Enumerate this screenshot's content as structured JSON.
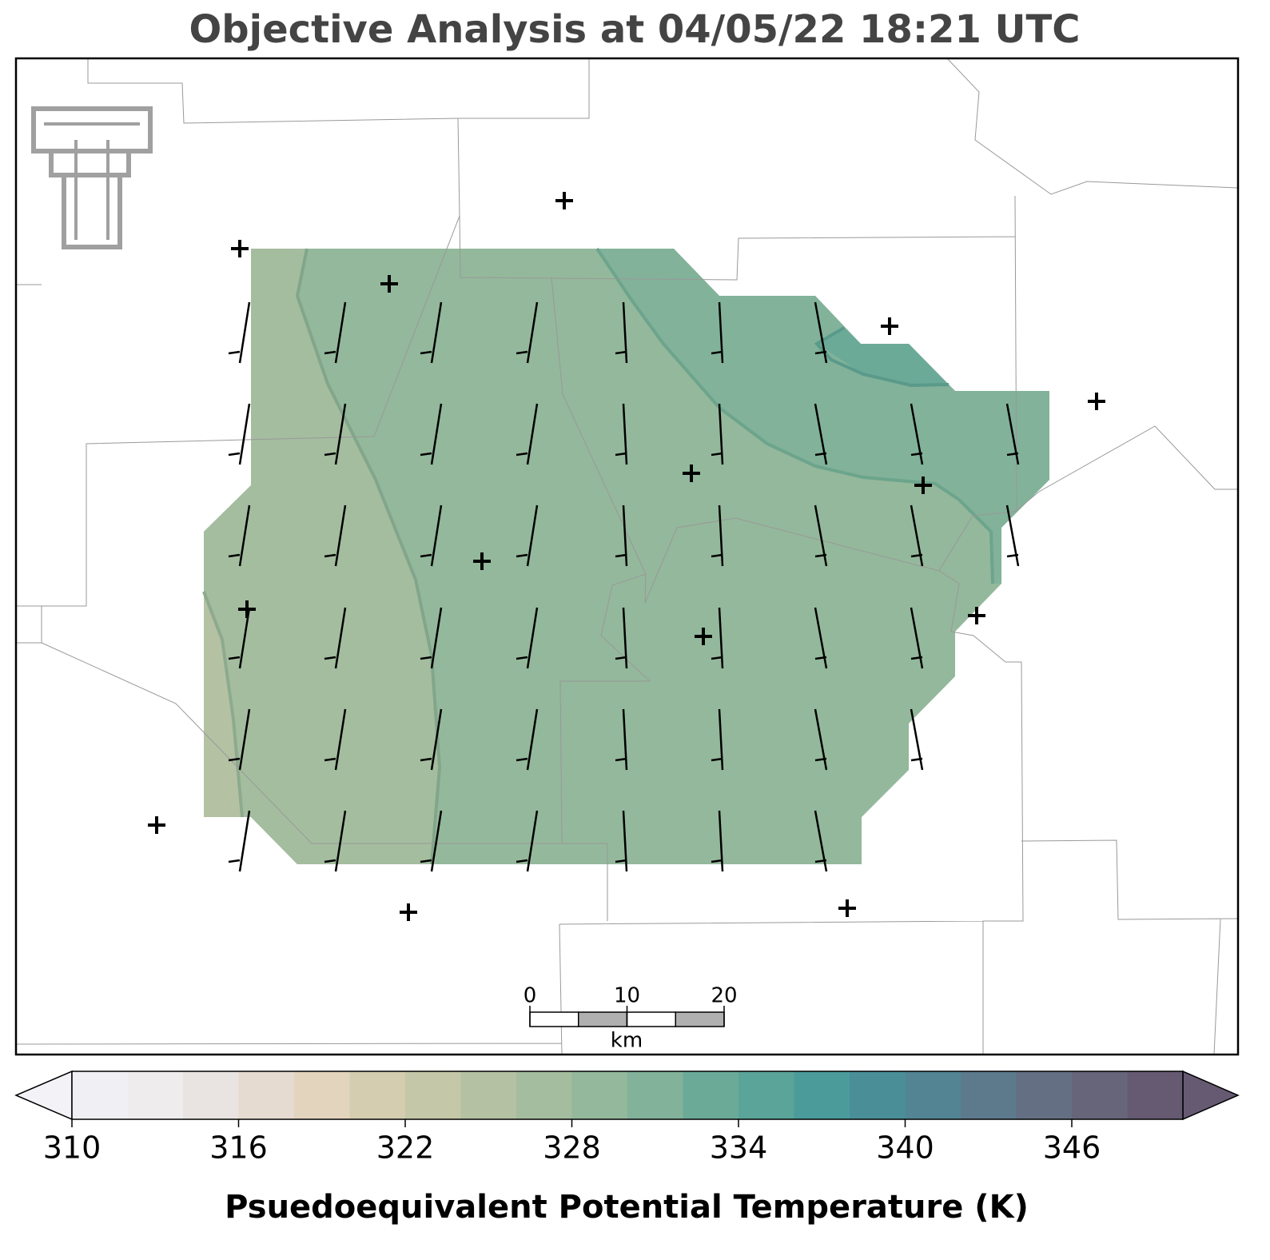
{
  "chart_data": {
    "type": "contour-map",
    "title": "Objective Analysis at 04/05/22 18:21 UTC",
    "colorbar": {
      "label": "Psuedoequivalent Potential Temperature (K)",
      "lim": [
        310,
        350
      ],
      "ticks": [
        310,
        316,
        322,
        328,
        334,
        340,
        346
      ],
      "under_color": "#f3f3f7",
      "over_color": "#665a72",
      "colors": [
        "#f0eff3",
        "#eeeced",
        "#e9e4e1",
        "#e6dbd0",
        "#e3d4be",
        "#d5cdb0",
        "#c4c7a8",
        "#b4c2a3",
        "#a4bd9f",
        "#94b89b",
        "#82b29a",
        "#6caa98",
        "#5aa499",
        "#4c9b9b",
        "#4a8f98",
        "#528494",
        "#5d7a8c",
        "#646f83",
        "#666579",
        "#665a72"
      ]
    },
    "scale_bar": {
      "ticks": [
        0,
        10,
        20
      ],
      "unit": "km"
    }
  }
}
